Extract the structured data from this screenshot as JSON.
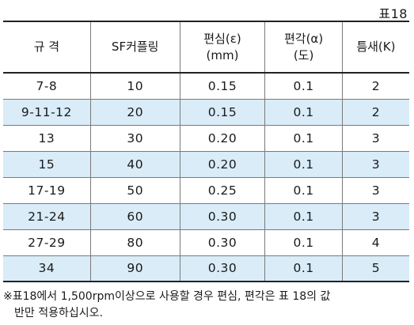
{
  "table_label": "표18",
  "headers": [
    {
      "line1": "규 격",
      "line2": ""
    },
    {
      "line1": "SF커플링",
      "line2": ""
    },
    {
      "line1": "편심(ε)",
      "line2": "(mm)"
    },
    {
      "line1": "편각(α)",
      "line2": "(도)"
    },
    {
      "line1": "틈새(K)",
      "line2": ""
    }
  ],
  "rows": [
    [
      "7-8",
      "10",
      "0.15",
      "0.1",
      "2"
    ],
    [
      "9-11-12",
      "20",
      "0.15",
      "0.1",
      "2"
    ],
    [
      "13",
      "30",
      "0.20",
      "0.1",
      "3"
    ],
    [
      "15",
      "40",
      "0.20",
      "0.1",
      "3"
    ],
    [
      "17-19",
      "50",
      "0.25",
      "0.1",
      "3"
    ],
    [
      "21-24",
      "60",
      "0.30",
      "0.1",
      "3"
    ],
    [
      "27-29",
      "80",
      "0.30",
      "0.1",
      "4"
    ],
    [
      "34",
      "90",
      "0.30",
      "0.1",
      "5"
    ]
  ],
  "note": {
    "line1": "※표18에서 1,500rpm이상으로 사용할 경우 편심, 편각은 표 18의 값",
    "line2": "반만 적용하십시오."
  },
  "colors": {
    "alt_row_background": "#d9ecf8",
    "border": "#222222"
  }
}
